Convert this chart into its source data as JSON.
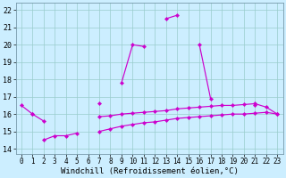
{
  "background_color": "#cceeff",
  "line_color": "#cc00cc",
  "grid_color": "#99cccc",
  "xlabel": "Windchill (Refroidissement éolien,°C)",
  "ylim": [
    13.7,
    22.4
  ],
  "xlim": [
    -0.5,
    23.5
  ],
  "yticks": [
    14,
    15,
    16,
    17,
    18,
    19,
    20,
    21,
    22
  ],
  "xticks": [
    0,
    1,
    2,
    3,
    4,
    5,
    6,
    7,
    8,
    9,
    10,
    11,
    12,
    13,
    14,
    15,
    16,
    17,
    18,
    19,
    20,
    21,
    22,
    23
  ],
  "series": [
    [
      16.5,
      16.0,
      null,
      null,
      null,
      null,
      null,
      null,
      null,
      17.8,
      20.0,
      19.9,
      null,
      21.5,
      21.7,
      null,
      20.0,
      16.9,
      null,
      null,
      null,
      16.5,
      null,
      null
    ],
    [
      null,
      null,
      null,
      null,
      null,
      null,
      null,
      16.6,
      null,
      null,
      null,
      null,
      null,
      null,
      null,
      null,
      null,
      null,
      null,
      null,
      null,
      null,
      null,
      null
    ],
    [
      null,
      16.0,
      15.6,
      null,
      null,
      null,
      null,
      15.85,
      15.9,
      16.0,
      16.05,
      16.1,
      16.15,
      16.2,
      16.3,
      16.35,
      16.4,
      16.45,
      16.5,
      16.5,
      16.55,
      16.6,
      16.4,
      16.0
    ],
    [
      null,
      null,
      14.5,
      14.75,
      14.75,
      14.9,
      null,
      15.0,
      15.15,
      15.3,
      15.4,
      15.5,
      15.55,
      15.65,
      15.75,
      15.8,
      15.85,
      15.9,
      15.95,
      16.0,
      16.0,
      16.05,
      16.1,
      16.0
    ]
  ],
  "tick_fontsize": 5.5,
  "label_fontsize": 6.5
}
